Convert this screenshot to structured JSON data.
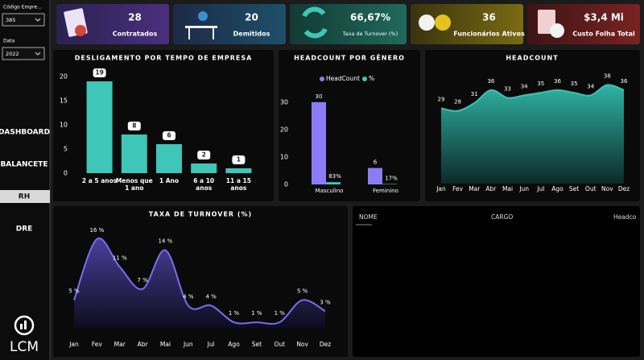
{
  "sidebar": {
    "filters": [
      {
        "label": "Código Empre...",
        "value": "385"
      },
      {
        "label": "Data",
        "value": "2022"
      }
    ],
    "menu": [
      "DASHBOARD",
      "BALANCETE",
      "RH",
      "DRE"
    ],
    "active": "RH",
    "logo": "LCM"
  },
  "kpis": [
    {
      "value": 28,
      "label": "Contratados"
    },
    {
      "value": 20,
      "label": "Demitidos"
    },
    {
      "value": "66,67%",
      "label": "Taxa de Turnover (%)"
    },
    {
      "value": 36,
      "label": "Funcionários Ativos"
    },
    {
      "value": "$3,4 Mi",
      "label": "Custo Folha Total"
    }
  ],
  "chart_data": [
    {
      "type": "bar",
      "title": "DESLIGAMENTO POR TEMPO DE EMPRESA",
      "categories": [
        "2 a 5 anos",
        "Menos que 1 ano",
        "1 Ano",
        "6 a 10 anos",
        "11 a 15 anos"
      ],
      "values": [
        19,
        8,
        6,
        2,
        1
      ],
      "color": "#3ec6b8",
      "ylim": [
        0,
        20
      ],
      "yticks": [
        0,
        5,
        10,
        15,
        20
      ]
    },
    {
      "type": "grouped_bar",
      "title": "HEADCOUNT POR GÊNERO",
      "categories": [
        "Masculino",
        "Feminino"
      ],
      "series": [
        {
          "name": "HeadCount",
          "color": "#8b7cf6",
          "values": [
            30,
            6
          ]
        },
        {
          "name": "%",
          "color": "#3ec6b8",
          "values": [
            0.83,
            0.17
          ],
          "value_labels": [
            "83%",
            "17%"
          ]
        }
      ],
      "ylim": [
        0,
        37
      ],
      "yticks": [
        0,
        10,
        20,
        30
      ]
    },
    {
      "type": "area",
      "title": "HEADCOUNT",
      "categories": [
        "Jan",
        "Fev",
        "Mar",
        "Abr",
        "Mai",
        "Jun",
        "Jul",
        "Ago",
        "Set",
        "Out",
        "Nov",
        "Dez"
      ],
      "values": [
        29,
        28,
        31,
        36,
        33,
        34,
        35,
        36,
        35,
        34,
        38,
        36
      ],
      "color": "#3fc2b2",
      "ylim": [
        0,
        40
      ]
    },
    {
      "type": "area",
      "title": "TAXA DE TURNOVER (%)",
      "categories": [
        "Jan",
        "Fev",
        "Mar",
        "Abr",
        "Mai",
        "Jun",
        "Jul",
        "Ago",
        "Set",
        "Out",
        "Nov",
        "Dez"
      ],
      "values": [
        5,
        16,
        11,
        7,
        14,
        4,
        4,
        1,
        1,
        1,
        5,
        3
      ],
      "value_labels": [
        "5 %",
        "16 %",
        "11 %",
        "7 %",
        "14 %",
        "4 %",
        "4 %",
        "1 %",
        "1 %",
        "1 %",
        "5 %",
        "3 %"
      ],
      "color": "#7b6cf0",
      "ylim": [
        0,
        17
      ]
    }
  ],
  "table": {
    "columns": [
      "NOME",
      "CARGO",
      "Headco"
    ]
  }
}
